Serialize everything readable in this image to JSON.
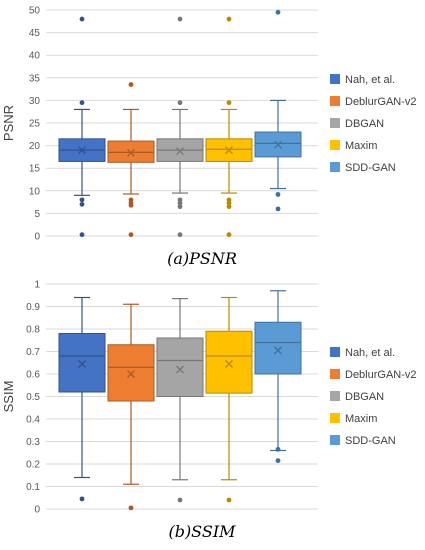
{
  "chart_data": [
    {
      "type": "box",
      "caption": "(a)PSNR",
      "ylabel": "PSNR",
      "ylim": [
        0,
        50
      ],
      "yticks": [
        "0",
        "5",
        "10",
        "15",
        "20",
        "25",
        "30",
        "35",
        "40",
        "45",
        "50"
      ],
      "grid": true,
      "legend_position": "right",
      "series": [
        {
          "name": "Nah, et al.",
          "color": "#4472C4",
          "whisker_low": 9,
          "q1": 16.5,
          "median": 19,
          "q3": 21.5,
          "whisker_high": 28,
          "mean": 19,
          "outliers": [
            48,
            29.5,
            8,
            7,
            0.3
          ]
        },
        {
          "name": "DeblurGAN-v2",
          "color": "#ED7D31",
          "whisker_low": 9.3,
          "q1": 16.3,
          "median": 18.5,
          "q3": 21,
          "whisker_high": 28,
          "mean": 18.4,
          "outliers": [
            33.5,
            8,
            7.3,
            6.8,
            0.3
          ]
        },
        {
          "name": "DBGAN",
          "color": "#A5A5A5",
          "whisker_low": 9.5,
          "q1": 16.5,
          "median": 19,
          "q3": 21.5,
          "whisker_high": 28,
          "mean": 18.8,
          "outliers": [
            48,
            29.5,
            8,
            7.3,
            6.5,
            0.3
          ]
        },
        {
          "name": "Maxim",
          "color": "#FFC000",
          "whisker_low": 9.5,
          "q1": 16.5,
          "median": 19.2,
          "q3": 21.5,
          "whisker_high": 28,
          "mean": 19,
          "outliers": [
            48,
            29.5,
            8,
            7.3,
            6.5,
            0.3
          ]
        },
        {
          "name": "SDD-GAN",
          "color": "#5B9BD5",
          "whisker_low": 10.5,
          "q1": 17.5,
          "median": 20.5,
          "q3": 23,
          "whisker_high": 30,
          "mean": 20.2,
          "outliers": [
            49.5,
            9.2,
            6
          ]
        }
      ]
    },
    {
      "type": "box",
      "caption": "(b)SSIM",
      "ylabel": "SSIM",
      "ylim": [
        0,
        1
      ],
      "yticks": [
        "0",
        "0.1",
        "0.2",
        "0.3",
        "0.4",
        "0.5",
        "0.6",
        "0.7",
        "0.8",
        "0.9",
        "1"
      ],
      "grid": true,
      "legend_position": "right",
      "series": [
        {
          "name": "Nah, et al.",
          "color": "#4472C4",
          "whisker_low": 0.14,
          "q1": 0.52,
          "median": 0.68,
          "q3": 0.78,
          "whisker_high": 0.94,
          "mean": 0.645,
          "outliers": [
            0.045
          ]
        },
        {
          "name": "DeblurGAN-v2",
          "color": "#ED7D31",
          "whisker_low": 0.11,
          "q1": 0.48,
          "median": 0.63,
          "q3": 0.73,
          "whisker_high": 0.91,
          "mean": 0.6,
          "outliers": [
            0.005
          ]
        },
        {
          "name": "DBGAN",
          "color": "#A5A5A5",
          "whisker_low": 0.13,
          "q1": 0.5,
          "median": 0.66,
          "q3": 0.76,
          "whisker_high": 0.935,
          "mean": 0.62,
          "outliers": [
            0.04
          ]
        },
        {
          "name": "Maxim",
          "color": "#FFC000",
          "whisker_low": 0.13,
          "q1": 0.515,
          "median": 0.68,
          "q3": 0.79,
          "whisker_high": 0.94,
          "mean": 0.645,
          "outliers": [
            0.04
          ]
        },
        {
          "name": "SDD-GAN",
          "color": "#5B9BD5",
          "whisker_low": 0.26,
          "q1": 0.6,
          "median": 0.74,
          "q3": 0.83,
          "whisker_high": 0.97,
          "mean": 0.705,
          "outliers": [
            0.265,
            0.215
          ]
        }
      ]
    }
  ]
}
